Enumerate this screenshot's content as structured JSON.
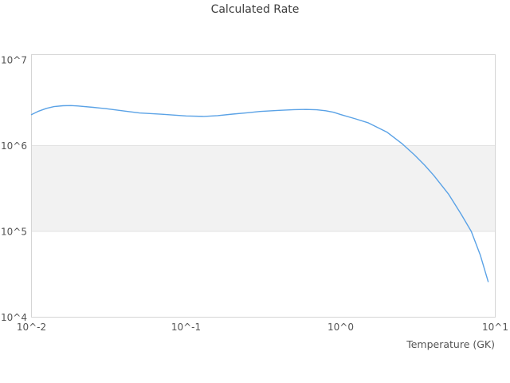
{
  "chart_data": {
    "type": "line",
    "title": "Calculated Rate",
    "xlabel": "Temperature (GK)",
    "ylabel": "",
    "x_scale": "log",
    "y_scale": "log",
    "xlim": [
      0.01,
      10
    ],
    "ylim": [
      10000,
      11500000
    ],
    "grid": "band-only",
    "legend": "none",
    "x_ticks": [
      {
        "label": "10^-2",
        "value": 0.01
      },
      {
        "label": "10^-1",
        "value": 0.1
      },
      {
        "label": "10^0",
        "value": 1
      },
      {
        "label": "10^1",
        "value": 10
      }
    ],
    "y_ticks": [
      {
        "label": "10^4",
        "value": 10000
      },
      {
        "label": "10^5",
        "value": 100000
      },
      {
        "label": "10^6",
        "value": 1000000
      },
      {
        "label": "10^7",
        "value": 10000000
      }
    ],
    "highlight_band": {
      "y_from": 100000,
      "y_to": 1000000,
      "fill": "#f2f2f2",
      "edge_color": "#e2e2e2"
    },
    "series": [
      {
        "name": "calculated-rate",
        "color": "#5aa2e6",
        "x": [
          0.01,
          0.011,
          0.0125,
          0.014,
          0.016,
          0.018,
          0.02,
          0.025,
          0.03,
          0.04,
          0.05,
          0.07,
          0.1,
          0.13,
          0.16,
          0.2,
          0.25,
          0.3,
          0.4,
          0.5,
          0.6,
          0.7,
          0.8,
          0.9,
          1.0,
          1.25,
          1.5,
          2.0,
          2.5,
          3.0,
          3.5,
          4.0,
          5.0,
          6.0,
          7.0,
          8.0,
          9.0
        ],
        "y": [
          2300000,
          2500000,
          2720000,
          2850000,
          2920000,
          2930000,
          2900000,
          2800000,
          2700000,
          2530000,
          2400000,
          2320000,
          2220000,
          2190000,
          2240000,
          2330000,
          2420000,
          2500000,
          2580000,
          2630000,
          2640000,
          2620000,
          2550000,
          2450000,
          2300000,
          2050000,
          1850000,
          1430000,
          1050000,
          780000,
          590000,
          450000,
          270000,
          160000,
          100000,
          53000,
          26000
        ]
      }
    ],
    "colors": {
      "background": "#ffffff",
      "plot_border": "#d5d5d5",
      "band_fill": "#f2f2f2",
      "band_edge": "#e2e2e2",
      "line": "#5aa2e6",
      "tick_text": "#545454",
      "title_text": "#3d3d3d"
    }
  }
}
